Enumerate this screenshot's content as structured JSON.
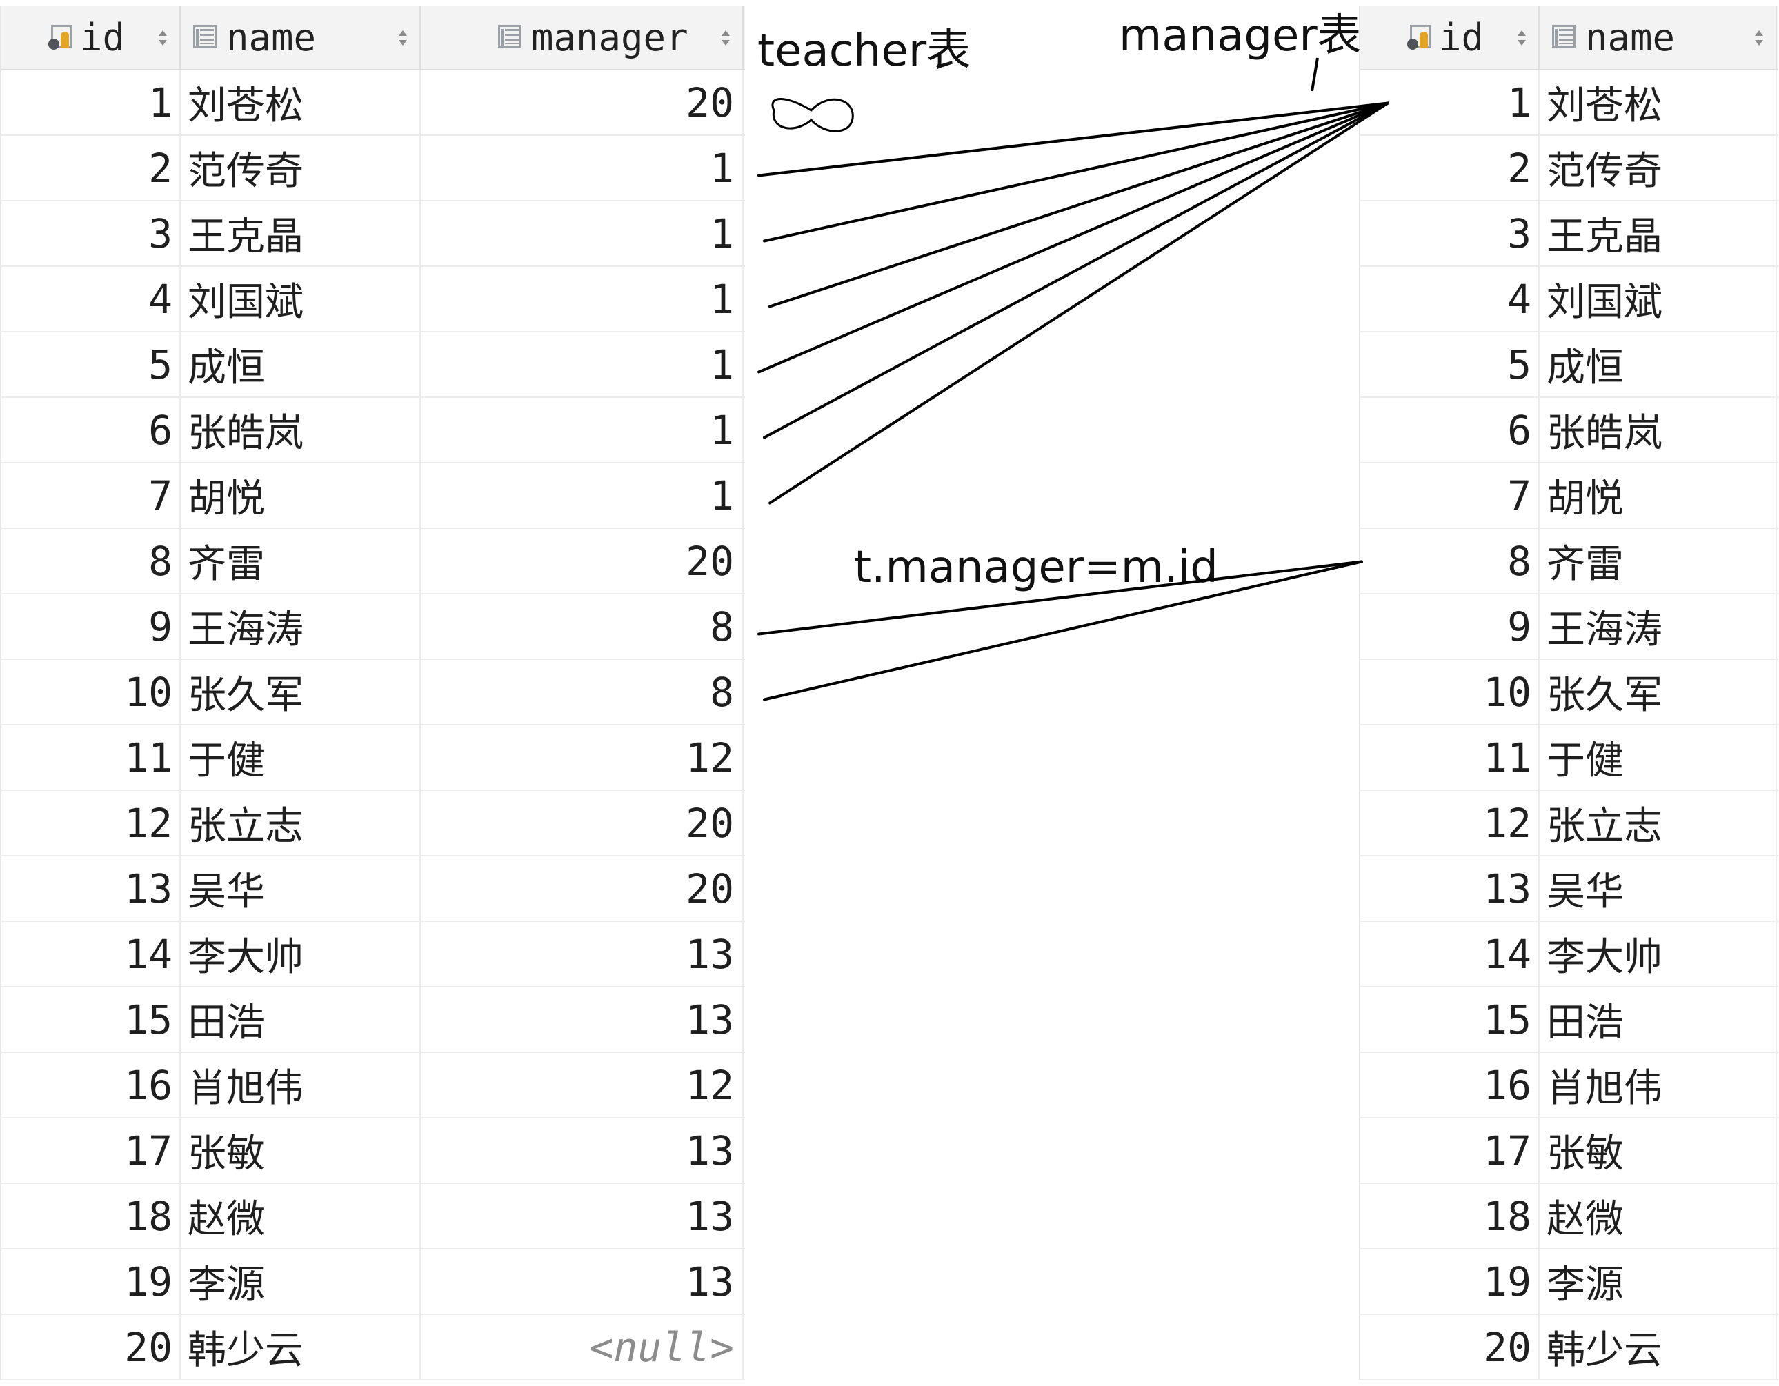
{
  "teacher_table": {
    "columns": {
      "id": "id",
      "name": "name",
      "manager": "manager"
    },
    "rows": [
      {
        "id": "1",
        "name": "刘苍松",
        "manager": "20"
      },
      {
        "id": "2",
        "name": "范传奇",
        "manager": "1"
      },
      {
        "id": "3",
        "name": "王克晶",
        "manager": "1"
      },
      {
        "id": "4",
        "name": "刘国斌",
        "manager": "1"
      },
      {
        "id": "5",
        "name": "成恒",
        "manager": "1"
      },
      {
        "id": "6",
        "name": "张皓岚",
        "manager": "1"
      },
      {
        "id": "7",
        "name": "胡悦",
        "manager": "1"
      },
      {
        "id": "8",
        "name": "齐雷",
        "manager": "20"
      },
      {
        "id": "9",
        "name": "王海涛",
        "manager": "8"
      },
      {
        "id": "10",
        "name": "张久军",
        "manager": "8"
      },
      {
        "id": "11",
        "name": "于健",
        "manager": "12"
      },
      {
        "id": "12",
        "name": "张立志",
        "manager": "20"
      },
      {
        "id": "13",
        "name": "吴华",
        "manager": "20"
      },
      {
        "id": "14",
        "name": "李大帅",
        "manager": "13"
      },
      {
        "id": "15",
        "name": "田浩",
        "manager": "13"
      },
      {
        "id": "16",
        "name": "肖旭伟",
        "manager": "12"
      },
      {
        "id": "17",
        "name": "张敏",
        "manager": "13"
      },
      {
        "id": "18",
        "name": "赵微",
        "manager": "13"
      },
      {
        "id": "19",
        "name": "李源",
        "manager": "13"
      },
      {
        "id": "20",
        "name": "韩少云",
        "manager": "<null>"
      }
    ]
  },
  "manager_table": {
    "columns": {
      "id": "id",
      "name": "name"
    },
    "rows": [
      {
        "id": "1",
        "name": "刘苍松"
      },
      {
        "id": "2",
        "name": "范传奇"
      },
      {
        "id": "3",
        "name": "王克晶"
      },
      {
        "id": "4",
        "name": "刘国斌"
      },
      {
        "id": "5",
        "name": "成恒"
      },
      {
        "id": "6",
        "name": "张皓岚"
      },
      {
        "id": "7",
        "name": "胡悦"
      },
      {
        "id": "8",
        "name": "齐雷"
      },
      {
        "id": "9",
        "name": "王海涛"
      },
      {
        "id": "10",
        "name": "张久军"
      },
      {
        "id": "11",
        "name": "于健"
      },
      {
        "id": "12",
        "name": "张立志"
      },
      {
        "id": "13",
        "name": "吴华"
      },
      {
        "id": "14",
        "name": "李大帅"
      },
      {
        "id": "15",
        "name": "田浩"
      },
      {
        "id": "16",
        "name": "肖旭伟"
      },
      {
        "id": "17",
        "name": "张敏"
      },
      {
        "id": "18",
        "name": "赵微"
      },
      {
        "id": "19",
        "name": "李源"
      },
      {
        "id": "20",
        "name": "韩少云"
      }
    ]
  },
  "annotations": {
    "teacher_label": "teacher表",
    "manager_label": "manager表",
    "join_condition": "t.manager=m.id"
  },
  "links": [
    {
      "from_teacher_id": "2",
      "to_manager_id": "1"
    },
    {
      "from_teacher_id": "3",
      "to_manager_id": "1"
    },
    {
      "from_teacher_id": "4",
      "to_manager_id": "1"
    },
    {
      "from_teacher_id": "5",
      "to_manager_id": "1"
    },
    {
      "from_teacher_id": "6",
      "to_manager_id": "1"
    },
    {
      "from_teacher_id": "7",
      "to_manager_id": "1"
    },
    {
      "from_teacher_id": "9",
      "to_manager_id": "8"
    },
    {
      "from_teacher_id": "10",
      "to_manager_id": "8"
    }
  ],
  "icons": {
    "key_column": "primary-key-column-icon",
    "column": "table-column-icon",
    "sort": "sort-arrows-icon"
  },
  "colors": {
    "line": "#000000",
    "null_text": "#8c8c8c"
  }
}
